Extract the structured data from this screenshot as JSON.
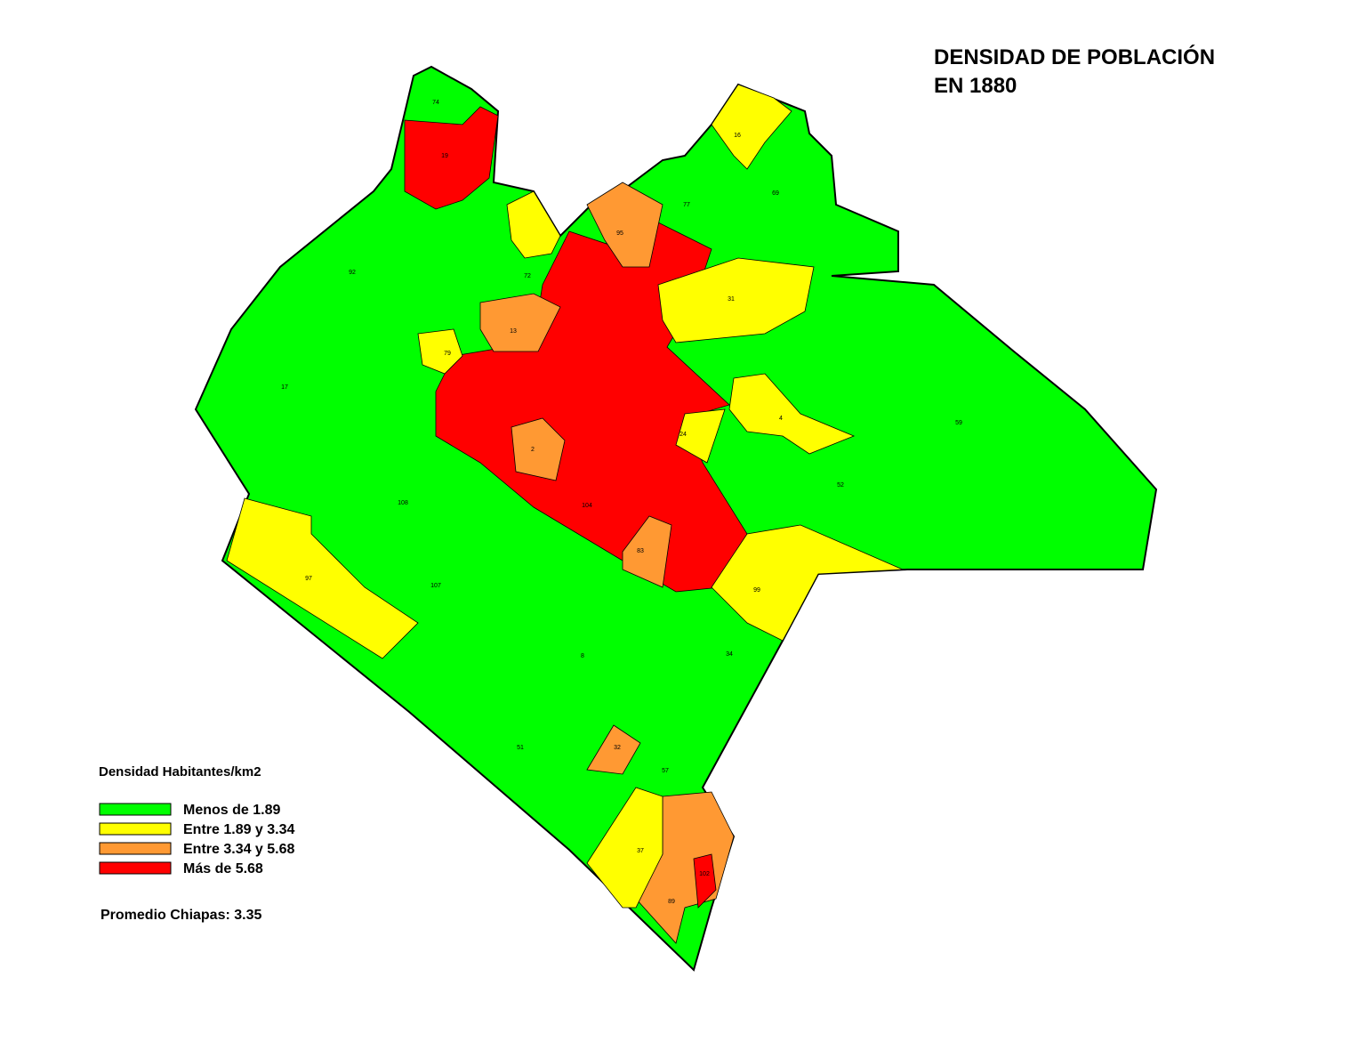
{
  "title": [
    "DENSIDAD DE POBLACIÓN",
    "EN 1880"
  ],
  "legend": {
    "title": "Densidad Habitantes/km2",
    "items": [
      {
        "label": "Menos de 1.89",
        "color": "#00ff00"
      },
      {
        "label": "Entre 1.89 y 3.34",
        "color": "#ffff00"
      },
      {
        "label": "Entre 3.34 y 5.68",
        "color": "#ff9933"
      },
      {
        "label": "Más de 5.68",
        "color": "#ff0000"
      }
    ]
  },
  "note": "Promedio Chiapas: 3.35",
  "regions": [
    {
      "label": "59",
      "color": "#00ff00"
    },
    {
      "label": "74",
      "color": "#00ff00"
    },
    {
      "label": "92",
      "color": "#00ff00"
    },
    {
      "label": "17",
      "color": "#00ff00"
    },
    {
      "label": "108",
      "color": "#00ff00"
    },
    {
      "label": "107",
      "color": "#00ff00"
    },
    {
      "label": "69",
      "color": "#00ff00"
    },
    {
      "label": "52",
      "color": "#00ff00"
    },
    {
      "label": "77",
      "color": "#00ff00"
    },
    {
      "label": "8",
      "color": "#00ff00"
    },
    {
      "label": "51",
      "color": "#00ff00"
    },
    {
      "label": "34",
      "color": "#00ff00"
    },
    {
      "label": "57",
      "color": "#00ff00"
    },
    {
      "label": "104",
      "color": "#ff0000"
    },
    {
      "label": "19",
      "color": "#ff0000"
    },
    {
      "label": "31",
      "color": "#ffff00"
    },
    {
      "label": "4",
      "color": "#ffff00"
    },
    {
      "label": "16",
      "color": "#ffff00"
    },
    {
      "label": "97",
      "color": "#ffff00"
    },
    {
      "label": "99",
      "color": "#ffff00"
    },
    {
      "label": "95",
      "color": "#ff9933"
    },
    {
      "label": "13",
      "color": "#ff9933"
    },
    {
      "label": "2",
      "color": "#ff9933"
    },
    {
      "label": "83",
      "color": "#ff9933"
    },
    {
      "label": "89",
      "color": "#ff9933"
    },
    {
      "label": "37",
      "color": "#ffff00"
    },
    {
      "label": "32",
      "color": "#ff9933"
    },
    {
      "label": "102",
      "color": "#ff0000"
    },
    {
      "label": "72",
      "color": "#ffff00"
    },
    {
      "label": "79",
      "color": "#ffff00"
    },
    {
      "label": "24",
      "color": "#ffff00"
    }
  ]
}
